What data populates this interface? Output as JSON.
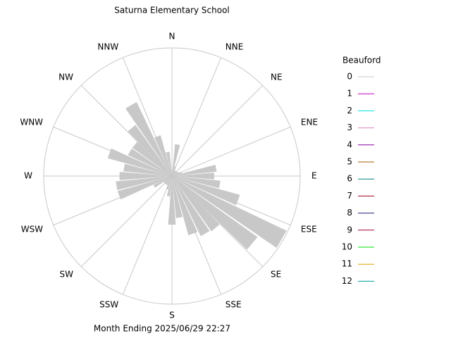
{
  "chart_data": {
    "type": "windrose",
    "title": "Saturna Elementary School",
    "caption": "Month Ending 2025/06/29 22:27",
    "directions": [
      "N",
      "NNE",
      "NE",
      "ENE",
      "E",
      "ESE",
      "SE",
      "SSE",
      "S",
      "SSW",
      "SW",
      "WSW",
      "W",
      "WNW",
      "NW",
      "NNW"
    ],
    "theta": [
      0,
      10,
      20,
      30,
      40,
      50,
      60,
      70,
      80,
      90,
      100,
      110,
      120,
      130,
      140,
      150,
      160,
      170,
      180,
      190,
      200,
      210,
      220,
      230,
      240,
      250,
      260,
      270,
      280,
      290,
      300,
      310,
      320,
      330,
      340,
      350
    ],
    "values": [
      5,
      25,
      8,
      5,
      5,
      5,
      6,
      8,
      35,
      33,
      38,
      55,
      99,
      82,
      53,
      52,
      48,
      33,
      38,
      16,
      11,
      8,
      8,
      8,
      16,
      44,
      44,
      41,
      38,
      52,
      38,
      38,
      49,
      64,
      33,
      19
    ],
    "rlim": [
      0,
      100
    ],
    "color": "#c8c8c8",
    "legend_title": "Beauford",
    "legend": [
      {
        "name": "0",
        "color": "#c8c8c8"
      },
      {
        "name": "1",
        "color": "#c000c0"
      },
      {
        "name": "2",
        "color": "#00e0e0"
      },
      {
        "name": "3",
        "color": "#e080c0"
      },
      {
        "name": "4",
        "color": "#8000a0"
      },
      {
        "name": "5",
        "color": "#a06000"
      },
      {
        "name": "6",
        "color": "#008080"
      },
      {
        "name": "7",
        "color": "#a00020"
      },
      {
        "name": "8",
        "color": "#202080"
      },
      {
        "name": "9",
        "color": "#a00030"
      },
      {
        "name": "10",
        "color": "#00e000"
      },
      {
        "name": "11",
        "color": "#e0a000"
      },
      {
        "name": "12",
        "color": "#00a0a0"
      }
    ]
  }
}
